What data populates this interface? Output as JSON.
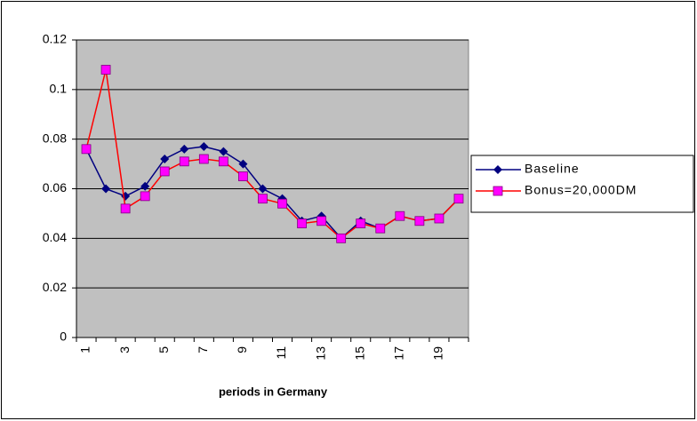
{
  "chart_data": {
    "type": "line",
    "x_label": "periods in Germany",
    "categories": [
      "1",
      null,
      "3",
      null,
      "5",
      null,
      "7",
      null,
      "9",
      null,
      "11",
      null,
      "13",
      null,
      "15",
      null,
      "17",
      null,
      "19",
      null
    ],
    "series": [
      {
        "name": "Baseline",
        "color": "#000080",
        "marker": "diamond",
        "values": [
          0.076,
          0.06,
          0.057,
          0.061,
          0.072,
          0.076,
          0.077,
          0.075,
          0.07,
          0.06,
          0.056,
          0.047,
          0.049,
          0.04,
          0.047,
          0.044,
          0.049,
          0.047,
          0.048,
          0.056
        ]
      },
      {
        "name": "Bonus=20,000DM",
        "color": "#ff0000",
        "marker_color": "#ff00ff",
        "marker": "square",
        "values": [
          0.076,
          0.108,
          0.052,
          0.057,
          0.067,
          0.071,
          0.072,
          0.071,
          0.065,
          0.056,
          0.054,
          0.046,
          0.047,
          0.04,
          0.046,
          0.044,
          0.049,
          0.047,
          0.048,
          0.056
        ]
      }
    ],
    "ylim": [
      0,
      0.12
    ],
    "yticks": [
      0,
      0.02,
      0.04,
      0.06,
      0.08,
      0.1,
      0.12
    ],
    "grid": true,
    "plot_background": "#c0c0c0",
    "legend": "right"
  }
}
